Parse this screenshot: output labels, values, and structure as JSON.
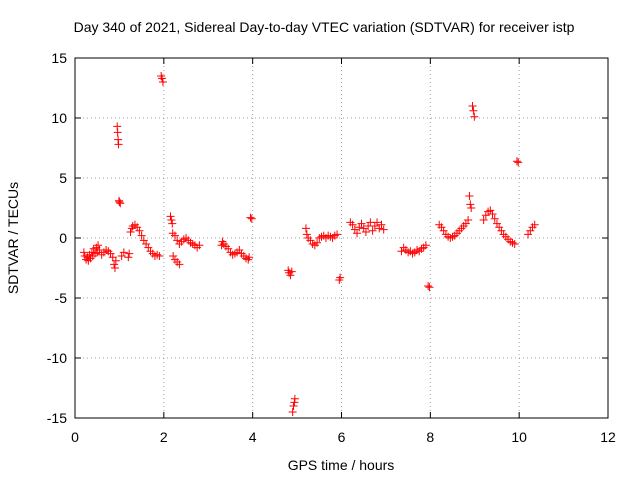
{
  "chart_data": {
    "type": "scatter",
    "title": "Day 340 of 2021, Sidereal Day-to-day VTEC variation (SDTVAR) for receiver istp",
    "xlabel": "GPS time / hours",
    "ylabel": "SDTVAR / TECUs",
    "xlim": [
      0,
      12
    ],
    "ylim": [
      -15,
      15
    ],
    "xticks": [
      0,
      2,
      4,
      6,
      8,
      10,
      12
    ],
    "yticks": [
      -15,
      -10,
      -5,
      0,
      5,
      10,
      15
    ],
    "xtick_labels": [
      "0",
      "2",
      "4",
      "6",
      "8",
      "10",
      "12"
    ],
    "ytick_labels": [
      "-15",
      "-10",
      "-5",
      "0",
      "5",
      "10",
      "15"
    ],
    "grid": true,
    "marker": "+",
    "color": "#ff0000",
    "series": [
      {
        "name": "SDTVAR",
        "points": [
          [
            0.2,
            -1.2
          ],
          [
            0.22,
            -1.5
          ],
          [
            0.25,
            -1.8
          ],
          [
            0.28,
            -1.6
          ],
          [
            0.3,
            -1.9
          ],
          [
            0.33,
            -1.4
          ],
          [
            0.35,
            -1.7
          ],
          [
            0.38,
            -1.2
          ],
          [
            0.4,
            -1.5
          ],
          [
            0.42,
            -0.9
          ],
          [
            0.45,
            -1.3
          ],
          [
            0.48,
            -0.8
          ],
          [
            0.5,
            -1.2
          ],
          [
            0.52,
            -0.6
          ],
          [
            0.55,
            -1.0
          ],
          [
            0.6,
            -1.4
          ],
          [
            0.65,
            -1.2
          ],
          [
            0.7,
            -1.0
          ],
          [
            0.75,
            -1.1
          ],
          [
            0.8,
            -1.3
          ],
          [
            0.85,
            -1.6
          ],
          [
            0.88,
            -2.2
          ],
          [
            0.9,
            -2.5
          ],
          [
            0.92,
            -1.9
          ],
          [
            0.95,
            9.3
          ],
          [
            0.96,
            8.8
          ],
          [
            0.97,
            8.2
          ],
          [
            0.98,
            7.8
          ],
          [
            0.99,
            3.1
          ],
          [
            1.0,
            3.0
          ],
          [
            1.02,
            2.9
          ],
          [
            1.05,
            -1.5
          ],
          [
            1.1,
            -1.2
          ],
          [
            1.2,
            -1.6
          ],
          [
            1.22,
            -1.3
          ],
          [
            1.25,
            0.5
          ],
          [
            1.28,
            0.8
          ],
          [
            1.3,
            1.0
          ],
          [
            1.35,
            1.1
          ],
          [
            1.4,
            0.9
          ],
          [
            1.45,
            0.6
          ],
          [
            1.5,
            0.2
          ],
          [
            1.55,
            -0.2
          ],
          [
            1.6,
            -0.5
          ],
          [
            1.65,
            -0.8
          ],
          [
            1.7,
            -1.1
          ],
          [
            1.75,
            -1.3
          ],
          [
            1.8,
            -1.5
          ],
          [
            1.85,
            -1.4
          ],
          [
            1.9,
            -1.5
          ],
          [
            1.94,
            13.5
          ],
          [
            1.96,
            13.3
          ],
          [
            1.98,
            13.0
          ],
          [
            2.15,
            1.8
          ],
          [
            2.17,
            1.5
          ],
          [
            2.19,
            1.2
          ],
          [
            2.2,
            0.4
          ],
          [
            2.21,
            -1.5
          ],
          [
            2.25,
            -1.8
          ],
          [
            2.3,
            -2.0
          ],
          [
            2.35,
            -2.2
          ],
          [
            2.25,
            0.2
          ],
          [
            2.3,
            -0.2
          ],
          [
            2.35,
            -0.5
          ],
          [
            2.4,
            -0.3
          ],
          [
            2.45,
            -0.1
          ],
          [
            2.5,
            0.0
          ],
          [
            2.55,
            -0.2
          ],
          [
            2.6,
            -0.4
          ],
          [
            2.65,
            -0.5
          ],
          [
            2.7,
            -0.6
          ],
          [
            2.75,
            -0.8
          ],
          [
            2.8,
            -0.6
          ],
          [
            3.3,
            -0.6
          ],
          [
            3.32,
            -0.3
          ],
          [
            3.35,
            -0.5
          ],
          [
            3.4,
            -0.7
          ],
          [
            3.45,
            -0.9
          ],
          [
            3.5,
            -1.2
          ],
          [
            3.55,
            -1.4
          ],
          [
            3.6,
            -1.3
          ],
          [
            3.65,
            -1.2
          ],
          [
            3.7,
            -1.0
          ],
          [
            3.75,
            -1.3
          ],
          [
            3.8,
            -1.5
          ],
          [
            3.85,
            -1.7
          ],
          [
            3.9,
            -1.8
          ],
          [
            3.92,
            -1.6
          ],
          [
            3.95,
            1.7
          ],
          [
            3.98,
            1.6
          ],
          [
            4.8,
            -2.7
          ],
          [
            4.82,
            -2.9
          ],
          [
            4.85,
            -3.1
          ],
          [
            4.88,
            -2.8
          ],
          [
            4.9,
            -14.5
          ],
          [
            4.92,
            -14.0
          ],
          [
            4.94,
            -13.7
          ],
          [
            4.95,
            -13.4
          ],
          [
            5.2,
            0.8
          ],
          [
            5.22,
            0.3
          ],
          [
            5.25,
            0.0
          ],
          [
            5.3,
            -0.2
          ],
          [
            5.35,
            -0.5
          ],
          [
            5.4,
            -0.6
          ],
          [
            5.45,
            -0.4
          ],
          [
            5.5,
            0.0
          ],
          [
            5.55,
            0.1
          ],
          [
            5.6,
            0.2
          ],
          [
            5.65,
            0.0
          ],
          [
            5.7,
            0.2
          ],
          [
            5.75,
            0.1
          ],
          [
            5.8,
            0.0
          ],
          [
            5.85,
            0.2
          ],
          [
            5.9,
            0.3
          ],
          [
            5.95,
            -3.5
          ],
          [
            5.97,
            -3.3
          ],
          [
            6.2,
            1.3
          ],
          [
            6.25,
            1.1
          ],
          [
            6.3,
            0.7
          ],
          [
            6.35,
            0.4
          ],
          [
            6.4,
            0.9
          ],
          [
            6.45,
            1.2
          ],
          [
            6.5,
            0.8
          ],
          [
            6.55,
            0.5
          ],
          [
            6.6,
            1.0
          ],
          [
            6.65,
            1.3
          ],
          [
            6.7,
            0.6
          ],
          [
            6.75,
            1.0
          ],
          [
            6.8,
            1.3
          ],
          [
            6.85,
            0.8
          ],
          [
            6.9,
            1.1
          ],
          [
            6.95,
            0.7
          ],
          [
            7.35,
            -1.1
          ],
          [
            7.4,
            -0.8
          ],
          [
            7.45,
            -1.0
          ],
          [
            7.5,
            -1.2
          ],
          [
            7.55,
            -1.1
          ],
          [
            7.6,
            -1.3
          ],
          [
            7.65,
            -1.2
          ],
          [
            7.7,
            -1.0
          ],
          [
            7.75,
            -1.1
          ],
          [
            7.8,
            -0.9
          ],
          [
            7.85,
            -0.8
          ],
          [
            7.9,
            -0.6
          ],
          [
            7.95,
            -4.0
          ],
          [
            7.98,
            -4.1
          ],
          [
            8.2,
            1.1
          ],
          [
            8.25,
            0.9
          ],
          [
            8.3,
            0.6
          ],
          [
            8.35,
            0.3
          ],
          [
            8.4,
            0.1
          ],
          [
            8.45,
            0.0
          ],
          [
            8.5,
            0.1
          ],
          [
            8.55,
            0.2
          ],
          [
            8.6,
            0.4
          ],
          [
            8.65,
            0.6
          ],
          [
            8.7,
            0.8
          ],
          [
            8.75,
            1.0
          ],
          [
            8.8,
            1.2
          ],
          [
            8.85,
            1.5
          ],
          [
            8.88,
            3.5
          ],
          [
            8.9,
            2.8
          ],
          [
            8.92,
            2.5
          ],
          [
            8.95,
            11.0
          ],
          [
            8.97,
            10.6
          ],
          [
            8.99,
            10.1
          ],
          [
            9.2,
            1.5
          ],
          [
            9.25,
            1.9
          ],
          [
            9.3,
            2.2
          ],
          [
            9.35,
            2.3
          ],
          [
            9.4,
            2.0
          ],
          [
            9.45,
            1.6
          ],
          [
            9.5,
            1.2
          ],
          [
            9.55,
            0.9
          ],
          [
            9.6,
            0.6
          ],
          [
            9.65,
            0.3
          ],
          [
            9.7,
            0.1
          ],
          [
            9.75,
            -0.1
          ],
          [
            9.8,
            -0.3
          ],
          [
            9.85,
            -0.4
          ],
          [
            9.9,
            -0.5
          ],
          [
            9.95,
            6.4
          ],
          [
            9.98,
            6.3
          ],
          [
            10.2,
            0.3
          ],
          [
            10.25,
            0.6
          ],
          [
            10.3,
            0.9
          ],
          [
            10.35,
            1.1
          ]
        ]
      }
    ]
  }
}
